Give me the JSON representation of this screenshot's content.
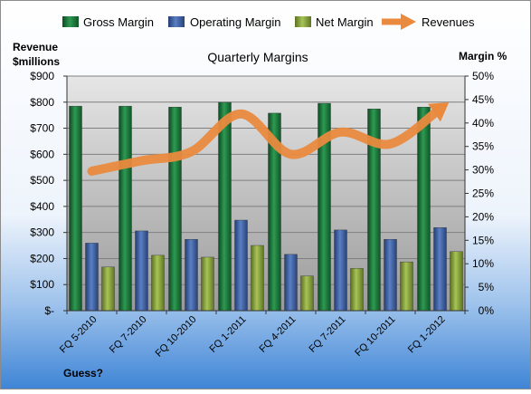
{
  "chart_data": {
    "type": "bar",
    "title": "Quarterly Margins",
    "categories": [
      "FQ 5-2010",
      "FQ 7-2010",
      "FQ 10-2010",
      "FQ 1-2011",
      "FQ 4-2011",
      "FQ 7-2011",
      "FQ 10-2011",
      "FQ 1-2012"
    ],
    "left_axis": {
      "label_line1": "Revenue",
      "label_line2": "$millions",
      "ylim": [
        0,
        900
      ],
      "ticks": [
        0,
        100,
        200,
        300,
        400,
        500,
        600,
        700,
        800,
        900
      ],
      "tick_labels": [
        "$-",
        "$100",
        "$200",
        "$300",
        "$400",
        "$500",
        "$600",
        "$700",
        "$800",
        "$900"
      ]
    },
    "right_axis": {
      "label": "Margin %",
      "ylim": [
        0,
        50
      ],
      "ticks": [
        0,
        5,
        10,
        15,
        20,
        25,
        30,
        35,
        40,
        45,
        50
      ],
      "tick_labels": [
        "0%",
        "5%",
        "10%",
        "15%",
        "20%",
        "25%",
        "30%",
        "35%",
        "40%",
        "45%",
        "50%"
      ]
    },
    "series": [
      {
        "name": "Gross Margin",
        "axis": "right",
        "kind": "bar",
        "color": "#1e7a3c",
        "values": [
          43.6,
          43.6,
          43.4,
          44.4,
          42.1,
          44.2,
          43.0,
          43.4
        ]
      },
      {
        "name": "Operating Margin",
        "axis": "right",
        "kind": "bar",
        "color": "#3f62a6",
        "values": [
          14.4,
          17.0,
          15.2,
          19.3,
          12.0,
          17.2,
          15.2,
          17.7
        ]
      },
      {
        "name": "Net Margin",
        "axis": "right",
        "kind": "bar",
        "color": "#8da83a",
        "values": [
          9.3,
          11.8,
          11.4,
          13.9,
          7.4,
          9.0,
          10.4,
          12.6
        ]
      },
      {
        "name": "Revenues",
        "axis": "left",
        "kind": "line-arrow",
        "color": "#e98a3e",
        "values": [
          535,
          575,
          610,
          755,
          600,
          685,
          640,
          775
        ]
      }
    ],
    "legend_position": "top",
    "footnote": "Guess?",
    "grid": "horizontal"
  }
}
